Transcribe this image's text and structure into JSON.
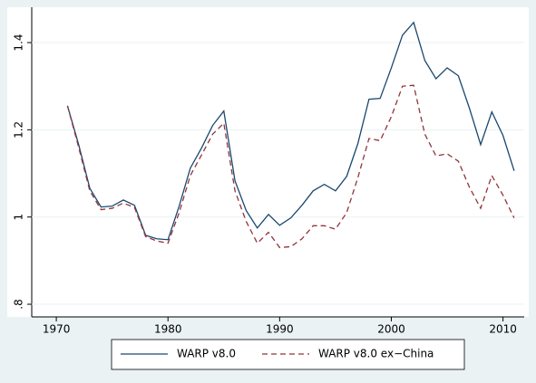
{
  "chart_data": {
    "type": "line",
    "x": [
      1971,
      1972,
      1973,
      1974,
      1975,
      1976,
      1977,
      1978,
      1979,
      1980,
      1981,
      1982,
      1983,
      1984,
      1985,
      1986,
      1987,
      1988,
      1989,
      1990,
      1991,
      1992,
      1993,
      1994,
      1995,
      1996,
      1997,
      1998,
      1999,
      2000,
      2001,
      2002,
      2003,
      2004,
      2005,
      2006,
      2007,
      2008,
      2009,
      2010,
      2011
    ],
    "series": [
      {
        "name": "WARP v8.0",
        "color": "#1a476f",
        "dash": false,
        "values": [
          1.255,
          1.166,
          1.066,
          1.023,
          1.025,
          1.039,
          1.027,
          0.958,
          0.95,
          0.948,
          1.025,
          1.112,
          1.158,
          1.21,
          1.243,
          1.083,
          1.015,
          0.975,
          1.006,
          0.981,
          0.998,
          1.027,
          1.06,
          1.075,
          1.06,
          1.093,
          1.168,
          1.27,
          1.272,
          1.342,
          1.417,
          1.446,
          1.359,
          1.317,
          1.342,
          1.324,
          1.249,
          1.166,
          1.241,
          1.187,
          1.106
        ]
      },
      {
        "name": "WARP v8.0 ex−China",
        "color": "#90353b",
        "dash": true,
        "values": [
          1.255,
          1.16,
          1.06,
          1.017,
          1.02,
          1.032,
          1.022,
          0.955,
          0.945,
          0.94,
          1.01,
          1.095,
          1.142,
          1.19,
          1.215,
          1.06,
          0.99,
          0.94,
          0.965,
          0.93,
          0.932,
          0.95,
          0.98,
          0.98,
          0.972,
          1.01,
          1.09,
          1.18,
          1.175,
          1.23,
          1.3,
          1.302,
          1.19,
          1.14,
          1.145,
          1.128,
          1.068,
          1.02,
          1.095,
          1.05,
          0.998
        ]
      }
    ],
    "xlim": [
      1967.8,
      2011.9
    ],
    "xticks": [
      1970,
      1980,
      1990,
      2000,
      2010
    ],
    "ylim": [
      0.771,
      1.481
    ],
    "yticks": [
      {
        "value": 0.8,
        "label": ".8"
      },
      1,
      1.2,
      1.4
    ],
    "grid": true
  }
}
